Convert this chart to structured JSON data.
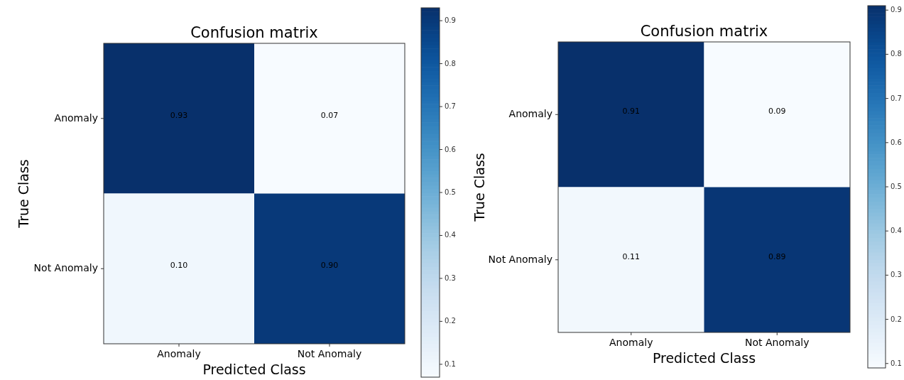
{
  "chart_data": [
    {
      "type": "heatmap",
      "title": "Confusion matrix",
      "xlabel": "Predicted Class",
      "ylabel": "True Class",
      "categories": [
        "Anomaly",
        "Not Anomaly"
      ],
      "y_categories": [
        "Anomaly",
        "Not Anomaly"
      ],
      "cells": [
        [
          0.93,
          0.07
        ],
        [
          0.1,
          0.9
        ]
      ],
      "cell_labels": [
        [
          "0.93",
          "0.07"
        ],
        [
          "0.10",
          "0.90"
        ]
      ],
      "data_labels": true,
      "clim": [
        0.07,
        0.93
      ],
      "cticks": [
        0.1,
        0.2,
        0.3,
        0.4,
        0.5,
        0.6,
        0.7,
        0.8,
        0.9
      ]
    },
    {
      "type": "heatmap",
      "title": "Confusion matrix",
      "xlabel": "Predicted Class",
      "ylabel": "True Class",
      "categories": [
        "Anomaly",
        "Not Anomaly"
      ],
      "y_categories": [
        "Anomaly",
        "Not Anomaly"
      ],
      "cells": [
        [
          0.91,
          0.09
        ],
        [
          0.11,
          0.89
        ]
      ],
      "cell_labels": [
        [
          "0.91",
          "0.09"
        ],
        [
          "0.11",
          "0.89"
        ]
      ],
      "data_labels": true,
      "clim": [
        0.09,
        0.91
      ],
      "cticks": [
        0.1,
        0.2,
        0.3,
        0.4,
        0.5,
        0.6,
        0.7,
        0.8,
        0.9
      ]
    }
  ]
}
